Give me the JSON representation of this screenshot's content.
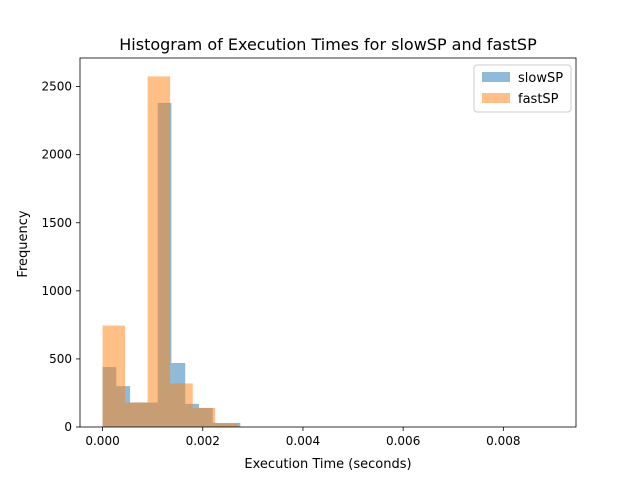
{
  "chart_data": {
    "type": "histogram",
    "title": "Histogram of Execution Times for slowSP and fastSP",
    "xlabel": "Execution Time (seconds)",
    "ylabel": "Frequency",
    "xlim": [
      -0.00045,
      0.00945
    ],
    "ylim": [
      0,
      2710
    ],
    "x_ticks": [
      0.0,
      0.002,
      0.004,
      0.006,
      0.008
    ],
    "x_tick_labels": [
      "0.000",
      "0.002",
      "0.004",
      "0.006",
      "0.008"
    ],
    "y_ticks": [
      0,
      500,
      1000,
      1500,
      2000,
      2500
    ],
    "y_tick_labels": [
      "0",
      "500",
      "1000",
      "1500",
      "2000",
      "2500"
    ],
    "legend_position": "top-right",
    "grid": false,
    "series": [
      {
        "name": "slowSP",
        "color": "#1f77b4",
        "alpha": 0.5,
        "bins": [
          {
            "x0": 0.0,
            "x1": 0.000275,
            "count": 440
          },
          {
            "x0": 0.000275,
            "x1": 0.00055,
            "count": 300
          },
          {
            "x0": 0.00055,
            "x1": 0.000825,
            "count": 180
          },
          {
            "x0": 0.000825,
            "x1": 0.0011,
            "count": 180
          },
          {
            "x0": 0.0011,
            "x1": 0.001375,
            "count": 2380
          },
          {
            "x0": 0.001375,
            "x1": 0.00165,
            "count": 470
          },
          {
            "x0": 0.00165,
            "x1": 0.001925,
            "count": 170
          },
          {
            "x0": 0.001925,
            "x1": 0.0022,
            "count": 140
          },
          {
            "x0": 0.0022,
            "x1": 0.002475,
            "count": 30
          },
          {
            "x0": 0.002475,
            "x1": 0.00275,
            "count": 30
          }
        ]
      },
      {
        "name": "fastSP",
        "color": "#ff7f0e",
        "alpha": 0.5,
        "bins": [
          {
            "x0": 0.0,
            "x1": 0.00045,
            "count": 745
          },
          {
            "x0": 0.00045,
            "x1": 0.0009,
            "count": 180
          },
          {
            "x0": 0.0009,
            "x1": 0.00135,
            "count": 2575
          },
          {
            "x0": 0.00135,
            "x1": 0.0018,
            "count": 320
          },
          {
            "x0": 0.0018,
            "x1": 0.00225,
            "count": 140
          },
          {
            "x0": 0.00225,
            "x1": 0.0027,
            "count": 25
          }
        ]
      }
    ]
  }
}
